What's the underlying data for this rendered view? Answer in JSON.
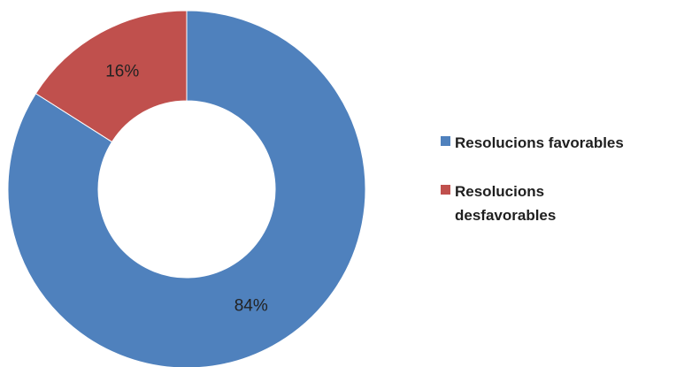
{
  "chart_data": {
    "type": "pie",
    "variant": "donut",
    "categories": [
      "Resolucions favorables",
      "Resolucions desfavorables"
    ],
    "values": [
      84,
      16
    ],
    "labels": [
      "84%",
      "16%"
    ],
    "colors": [
      "#4f81bd",
      "#c0504d"
    ],
    "legend_position": "right"
  }
}
